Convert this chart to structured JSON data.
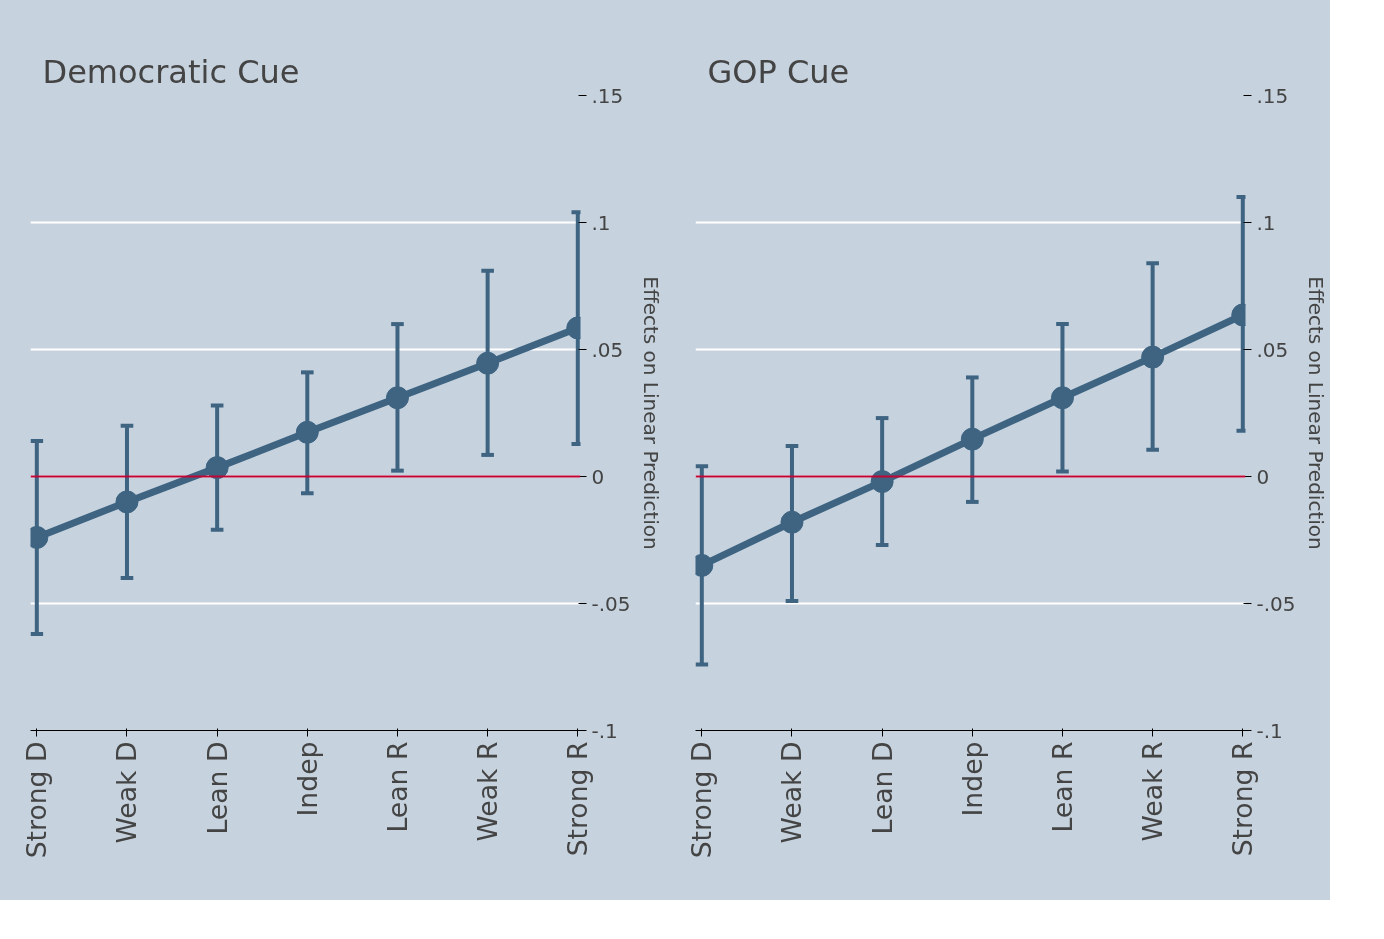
{
  "chart_data": [
    {
      "type": "line",
      "title": "Democratic Cue",
      "ylabel": "Effects on Linear Prediction",
      "categories": [
        "Strong D",
        "Weak D",
        "Lean D",
        "Indep",
        "Lean R",
        "Weak R",
        "Strong R"
      ],
      "series": [
        {
          "color": "#3e6482",
          "values": [
            -0.024,
            -0.01,
            0.0035,
            0.0174,
            0.031,
            0.0446,
            0.0585
          ],
          "errors": [
            [
              -0.062,
              0.014
            ],
            [
              -0.04,
              0.02
            ],
            [
              -0.021,
              0.028
            ],
            [
              -0.0066,
              0.041
            ],
            [
              0.0023,
              0.06
            ],
            [
              0.0085,
              0.081
            ],
            [
              0.0128,
              0.104
            ]
          ]
        }
      ],
      "ylim": [
        -0.1,
        0.15
      ],
      "yticks": [
        {
          "value": -0.1,
          "label": "-.1"
        },
        {
          "value": -0.05,
          "label": "-.05"
        },
        {
          "value": 0,
          "label": "0"
        },
        {
          "value": 0.05,
          "label": ".05"
        },
        {
          "value": 0.1,
          "label": ".1"
        },
        {
          "value": 0.15,
          "label": ".15"
        }
      ],
      "ref_lines": [
        {
          "axis": "y",
          "value": 0,
          "color": "#c10534"
        }
      ],
      "grid": "y",
      "marker": "circle"
    },
    {
      "type": "line",
      "title": "GOP Cue",
      "ylabel": "Effects on Linear Prediction",
      "categories": [
        "Strong D",
        "Weak D",
        "Lean D",
        "Indep",
        "Lean R",
        "Weak R",
        "Strong R"
      ],
      "series": [
        {
          "color": "#3e6482",
          "values": [
            -0.035,
            -0.018,
            -0.002,
            0.0147,
            0.031,
            0.047,
            0.0636
          ],
          "errors": [
            [
              -0.074,
              0.004
            ],
            [
              -0.049,
              0.012
            ],
            [
              -0.027,
              0.023
            ],
            [
              -0.01,
              0.039
            ],
            [
              0.002,
              0.06
            ],
            [
              0.0105,
              0.084
            ],
            [
              0.018,
              0.11
            ]
          ]
        }
      ],
      "ylim": [
        -0.1,
        0.15
      ],
      "yticks": [
        {
          "value": -0.1,
          "label": "-.1"
        },
        {
          "value": -0.05,
          "label": "-.05"
        },
        {
          "value": 0,
          "label": "0"
        },
        {
          "value": 0.05,
          "label": ".05"
        },
        {
          "value": 0.1,
          "label": ".1"
        },
        {
          "value": 0.15,
          "label": ".15"
        }
      ],
      "ref_lines": [
        {
          "axis": "y",
          "value": 0,
          "color": "#c10534"
        }
      ],
      "grid": "y",
      "marker": "circle"
    }
  ]
}
